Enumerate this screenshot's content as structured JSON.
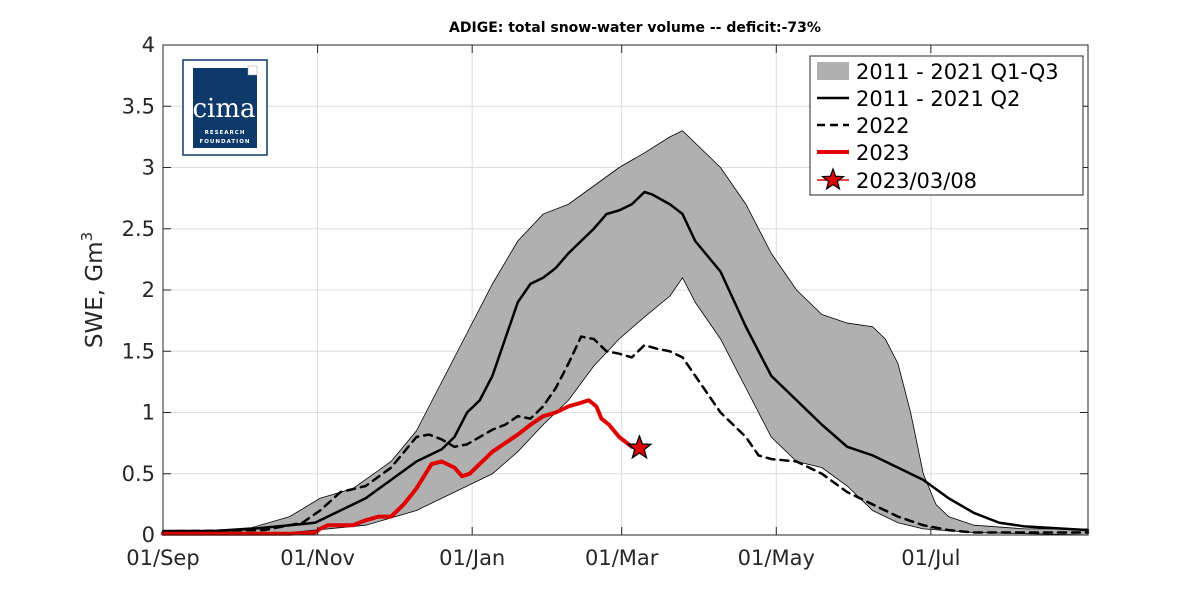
{
  "chart_data": {
    "type": "line",
    "title": "ADIGE: total snow-water volume -- deficit:-73%",
    "ylabel": "SWE, Gm",
    "ylabel_superscript": "3",
    "xlabel": "",
    "xlim_days": [
      0,
      365
    ],
    "ylim": [
      0,
      4
    ],
    "y_ticks": [
      0,
      0.5,
      1,
      1.5,
      2,
      2.5,
      3,
      3.5,
      4
    ],
    "y_tick_labels": [
      "0",
      "0.5",
      "1",
      "1.5",
      "2",
      "2.5",
      "3",
      "3.5",
      "4"
    ],
    "x_ticks": [
      {
        "day": 0,
        "label": "01/Sep"
      },
      {
        "day": 61,
        "label": "01/Nov"
      },
      {
        "day": 122,
        "label": "01/Jan"
      },
      {
        "day": 181,
        "label": "01/Mar"
      },
      {
        "day": 242,
        "label": "01/May"
      },
      {
        "day": 303,
        "label": "01/Jul"
      }
    ],
    "grid": true,
    "legend_position": "top-right",
    "series": [
      {
        "name": "2011 - 2021 Q1-Q3",
        "kind": "band",
        "color": "#b0b0b0",
        "edge_color": "#000000",
        "upper": [
          [
            0,
            0.04
          ],
          [
            20,
            0.04
          ],
          [
            35,
            0.06
          ],
          [
            50,
            0.15
          ],
          [
            62,
            0.3
          ],
          [
            75,
            0.38
          ],
          [
            90,
            0.6
          ],
          [
            100,
            0.85
          ],
          [
            110,
            1.25
          ],
          [
            120,
            1.65
          ],
          [
            130,
            2.05
          ],
          [
            140,
            2.4
          ],
          [
            150,
            2.62
          ],
          [
            160,
            2.7
          ],
          [
            170,
            2.85
          ],
          [
            180,
            3.0
          ],
          [
            190,
            3.12
          ],
          [
            200,
            3.25
          ],
          [
            205,
            3.3
          ],
          [
            210,
            3.2
          ],
          [
            220,
            3.0
          ],
          [
            230,
            2.7
          ],
          [
            240,
            2.3
          ],
          [
            250,
            2.0
          ],
          [
            260,
            1.8
          ],
          [
            270,
            1.73
          ],
          [
            280,
            1.7
          ],
          [
            285,
            1.6
          ],
          [
            290,
            1.4
          ],
          [
            295,
            1.0
          ],
          [
            300,
            0.5
          ],
          [
            305,
            0.25
          ],
          [
            310,
            0.15
          ],
          [
            320,
            0.08
          ],
          [
            340,
            0.05
          ],
          [
            365,
            0.05
          ]
        ],
        "lower": [
          [
            0,
            0.0
          ],
          [
            50,
            0.02
          ],
          [
            80,
            0.08
          ],
          [
            100,
            0.2
          ],
          [
            120,
            0.4
          ],
          [
            130,
            0.5
          ],
          [
            140,
            0.68
          ],
          [
            150,
            0.9
          ],
          [
            160,
            1.1
          ],
          [
            170,
            1.38
          ],
          [
            180,
            1.6
          ],
          [
            190,
            1.78
          ],
          [
            200,
            1.95
          ],
          [
            205,
            2.1
          ],
          [
            210,
            1.9
          ],
          [
            220,
            1.6
          ],
          [
            230,
            1.2
          ],
          [
            240,
            0.8
          ],
          [
            250,
            0.6
          ],
          [
            260,
            0.55
          ],
          [
            270,
            0.4
          ],
          [
            280,
            0.2
          ],
          [
            290,
            0.1
          ],
          [
            300,
            0.05
          ],
          [
            320,
            0.02
          ],
          [
            365,
            0.0
          ]
        ],
        "lower_note": "lower envelope in 0..4 units"
      },
      {
        "name": "2011 - 2021 Q2",
        "kind": "line",
        "color": "#000000",
        "dash": "solid",
        "points": [
          [
            0,
            0.03
          ],
          [
            20,
            0.03
          ],
          [
            35,
            0.05
          ],
          [
            50,
            0.08
          ],
          [
            60,
            0.1
          ],
          [
            70,
            0.2
          ],
          [
            80,
            0.3
          ],
          [
            90,
            0.45
          ],
          [
            100,
            0.6
          ],
          [
            110,
            0.7
          ],
          [
            115,
            0.8
          ],
          [
            120,
            1.0
          ],
          [
            125,
            1.1
          ],
          [
            130,
            1.3
          ],
          [
            135,
            1.6
          ],
          [
            140,
            1.9
          ],
          [
            145,
            2.05
          ],
          [
            150,
            2.1
          ],
          [
            155,
            2.18
          ],
          [
            160,
            2.3
          ],
          [
            165,
            2.4
          ],
          [
            170,
            2.5
          ],
          [
            175,
            2.62
          ],
          [
            180,
            2.65
          ],
          [
            185,
            2.7
          ],
          [
            190,
            2.8
          ],
          [
            193,
            2.78
          ],
          [
            200,
            2.7
          ],
          [
            205,
            2.62
          ],
          [
            210,
            2.4
          ],
          [
            220,
            2.15
          ],
          [
            230,
            1.7
          ],
          [
            240,
            1.3
          ],
          [
            250,
            1.1
          ],
          [
            260,
            0.9
          ],
          [
            270,
            0.72
          ],
          [
            280,
            0.65
          ],
          [
            290,
            0.55
          ],
          [
            300,
            0.45
          ],
          [
            310,
            0.3
          ],
          [
            320,
            0.18
          ],
          [
            330,
            0.1
          ],
          [
            340,
            0.07
          ],
          [
            365,
            0.04
          ]
        ]
      },
      {
        "name": "2022",
        "kind": "line",
        "color": "#000000",
        "dash": "dashed",
        "points": [
          [
            0,
            0.03
          ],
          [
            40,
            0.04
          ],
          [
            55,
            0.1
          ],
          [
            62,
            0.2
          ],
          [
            70,
            0.35
          ],
          [
            80,
            0.4
          ],
          [
            90,
            0.55
          ],
          [
            100,
            0.8
          ],
          [
            105,
            0.82
          ],
          [
            110,
            0.78
          ],
          [
            115,
            0.72
          ],
          [
            120,
            0.74
          ],
          [
            125,
            0.8
          ],
          [
            130,
            0.86
          ],
          [
            135,
            0.9
          ],
          [
            140,
            0.97
          ],
          [
            145,
            0.95
          ],
          [
            150,
            1.05
          ],
          [
            155,
            1.2
          ],
          [
            160,
            1.4
          ],
          [
            165,
            1.62
          ],
          [
            170,
            1.6
          ],
          [
            175,
            1.5
          ],
          [
            180,
            1.48
          ],
          [
            185,
            1.45
          ],
          [
            190,
            1.55
          ],
          [
            195,
            1.52
          ],
          [
            200,
            1.5
          ],
          [
            205,
            1.45
          ],
          [
            210,
            1.3
          ],
          [
            220,
            1.0
          ],
          [
            230,
            0.8
          ],
          [
            235,
            0.65
          ],
          [
            240,
            0.62
          ],
          [
            250,
            0.6
          ],
          [
            260,
            0.5
          ],
          [
            270,
            0.35
          ],
          [
            280,
            0.25
          ],
          [
            290,
            0.15
          ],
          [
            300,
            0.08
          ],
          [
            310,
            0.04
          ],
          [
            320,
            0.02
          ],
          [
            365,
            0.02
          ]
        ]
      },
      {
        "name": "2023",
        "kind": "line",
        "color": "#e00000",
        "dash": "solid",
        "points": [
          [
            0,
            0.01
          ],
          [
            50,
            0.01
          ],
          [
            60,
            0.02
          ],
          [
            62,
            0.05
          ],
          [
            65,
            0.08
          ],
          [
            75,
            0.08
          ],
          [
            80,
            0.12
          ],
          [
            85,
            0.15
          ],
          [
            90,
            0.15
          ],
          [
            95,
            0.25
          ],
          [
            100,
            0.38
          ],
          [
            103,
            0.48
          ],
          [
            106,
            0.58
          ],
          [
            110,
            0.6
          ],
          [
            115,
            0.55
          ],
          [
            118,
            0.48
          ],
          [
            121,
            0.5
          ],
          [
            125,
            0.58
          ],
          [
            130,
            0.68
          ],
          [
            135,
            0.75
          ],
          [
            140,
            0.82
          ],
          [
            145,
            0.9
          ],
          [
            150,
            0.97
          ],
          [
            155,
            1.0
          ],
          [
            160,
            1.05
          ],
          [
            165,
            1.08
          ],
          [
            168,
            1.1
          ],
          [
            171,
            1.05
          ],
          [
            173,
            0.95
          ],
          [
            176,
            0.9
          ],
          [
            180,
            0.8
          ],
          [
            185,
            0.72
          ]
        ]
      },
      {
        "name": "2023/03/08",
        "kind": "marker",
        "color": "#e00000",
        "marker": "star",
        "point": [
          188,
          0.71
        ]
      }
    ]
  },
  "logo": {
    "big_text": "cima",
    "line1": "RESEARCH",
    "line2": "FOUNDATION",
    "box_color": "#0d3a6a"
  }
}
